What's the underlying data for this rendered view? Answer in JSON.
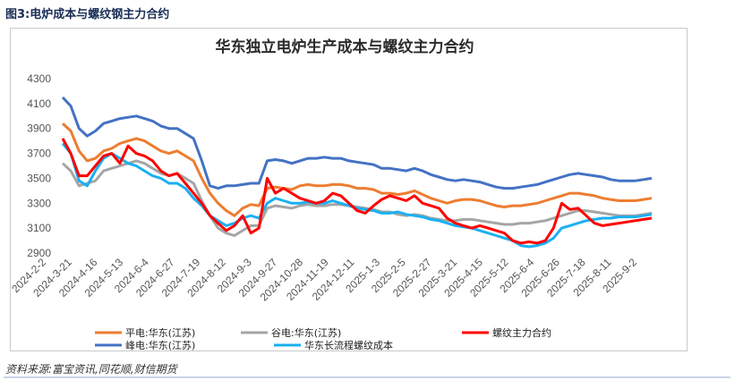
{
  "figure_title": "图3:电炉成本与螺纹钢主力合约",
  "source": "资料来源:富宝资讯,同花顺,财信期货",
  "chart_data": {
    "type": "line",
    "title": "华东独立电炉生产成本与螺纹主力合约",
    "xlabel": "",
    "ylabel": "",
    "ylim": [
      2900,
      4300
    ],
    "yticks": [
      2900,
      3100,
      3300,
      3500,
      3700,
      3900,
      4100,
      4300
    ],
    "x_tick_labels": [
      "2024-2-2",
      "2024-3-21",
      "2024-4-16",
      "2024-5-13",
      "2024-6-4",
      "2024-6-27",
      "2024-7-19",
      "2024-8-12",
      "2024-9-3",
      "2024-9-27",
      "2024-10-28",
      "2024-11-19",
      "2024-12-11",
      "2025-1-3",
      "2025-2-5",
      "2025-2-27",
      "2025-3-21",
      "2025-4-15",
      "2025-5-12",
      "2025-6-4",
      "2025-6-26",
      "2025-7-18",
      "2025-8-11",
      "2025-9-2"
    ],
    "x_index": [
      0,
      1,
      2,
      3,
      4,
      5,
      6,
      7,
      8,
      9,
      10,
      11,
      12,
      13,
      14,
      15,
      16,
      17,
      18,
      19,
      20,
      21,
      22,
      23,
      24,
      25,
      26,
      27,
      28,
      29,
      30,
      31,
      32,
      33,
      34,
      35,
      36,
      37,
      38,
      39,
      40,
      41,
      42,
      43,
      44,
      45,
      46,
      47,
      48,
      49,
      50,
      51,
      52,
      53,
      54,
      55,
      56,
      57,
      58,
      59,
      60,
      61,
      62,
      63,
      64,
      65,
      66,
      67,
      68,
      69,
      70,
      71,
      72
    ],
    "series": [
      {
        "name": "平电:华东(江苏)",
        "color": "#ED7D31",
        "legend_pos": "row1-left",
        "values": [
          3940,
          3880,
          3720,
          3640,
          3660,
          3720,
          3740,
          3780,
          3800,
          3820,
          3800,
          3760,
          3720,
          3700,
          3720,
          3680,
          3640,
          3500,
          3380,
          3300,
          3240,
          3200,
          3260,
          3290,
          3280,
          3420,
          3430,
          3420,
          3410,
          3440,
          3450,
          3440,
          3440,
          3450,
          3450,
          3440,
          3420,
          3420,
          3410,
          3380,
          3380,
          3370,
          3380,
          3400,
          3370,
          3340,
          3320,
          3300,
          3320,
          3330,
          3330,
          3320,
          3300,
          3280,
          3270,
          3280,
          3280,
          3290,
          3300,
          3320,
          3340,
          3360,
          3380,
          3380,
          3370,
          3360,
          3340,
          3330,
          3320,
          3320,
          3320,
          3330,
          3340
        ]
      },
      {
        "name": "谷电:华东(江苏)",
        "color": "#A5A5A5",
        "legend_pos": "row1-mid",
        "values": [
          3620,
          3560,
          3440,
          3460,
          3480,
          3560,
          3580,
          3600,
          3620,
          3640,
          3620,
          3580,
          3540,
          3520,
          3540,
          3500,
          3460,
          3320,
          3200,
          3100,
          3060,
          3040,
          3080,
          3120,
          3120,
          3260,
          3280,
          3270,
          3260,
          3280,
          3290,
          3280,
          3280,
          3290,
          3290,
          3280,
          3270,
          3260,
          3250,
          3230,
          3230,
          3210,
          3200,
          3210,
          3200,
          3180,
          3170,
          3160,
          3160,
          3170,
          3170,
          3160,
          3150,
          3140,
          3130,
          3130,
          3140,
          3140,
          3150,
          3160,
          3180,
          3200,
          3220,
          3240,
          3240,
          3230,
          3220,
          3210,
          3200,
          3200,
          3200,
          3210,
          3220
        ]
      },
      {
        "name": "螺纹主力合约",
        "color": "#FF0000",
        "legend_pos": "row1-right",
        "values": [
          3820,
          3700,
          3520,
          3520,
          3600,
          3680,
          3700,
          3620,
          3760,
          3700,
          3680,
          3640,
          3560,
          3520,
          3540,
          3460,
          3380,
          3300,
          3200,
          3140,
          3080,
          3120,
          3200,
          3060,
          3100,
          3500,
          3380,
          3420,
          3380,
          3340,
          3320,
          3300,
          3320,
          3380,
          3360,
          3300,
          3240,
          3220,
          3280,
          3330,
          3360,
          3340,
          3320,
          3360,
          3300,
          3280,
          3260,
          3180,
          3140,
          3120,
          3100,
          3120,
          3100,
          3080,
          3060,
          3000,
          2980,
          2990,
          2980,
          3000,
          3100,
          3300,
          3250,
          3260,
          3200,
          3140,
          3120,
          3130,
          3140,
          3150,
          3160,
          3170,
          3180
        ]
      },
      {
        "name": "峰电:华东(江苏)",
        "color": "#4472C4",
        "legend_pos": "row2-left",
        "values": [
          4150,
          4080,
          3900,
          3840,
          3880,
          3940,
          3960,
          3980,
          3990,
          4000,
          3980,
          3960,
          3920,
          3900,
          3900,
          3860,
          3820,
          3640,
          3440,
          3420,
          3440,
          3440,
          3450,
          3460,
          3460,
          3640,
          3650,
          3640,
          3620,
          3640,
          3660,
          3660,
          3670,
          3660,
          3660,
          3640,
          3630,
          3620,
          3610,
          3580,
          3580,
          3570,
          3560,
          3580,
          3560,
          3530,
          3510,
          3490,
          3480,
          3490,
          3480,
          3470,
          3450,
          3430,
          3420,
          3420,
          3430,
          3440,
          3450,
          3470,
          3490,
          3510,
          3530,
          3540,
          3530,
          3520,
          3510,
          3490,
          3480,
          3480,
          3480,
          3490,
          3500
        ]
      },
      {
        "name": "华东长流程螺纹成本",
        "color": "#1AB0F2",
        "legend_pos": "row2-mid",
        "values": [
          3780,
          3700,
          3480,
          3440,
          3560,
          3660,
          3700,
          3660,
          3620,
          3600,
          3560,
          3520,
          3500,
          3460,
          3460,
          3420,
          3340,
          3280,
          3200,
          3160,
          3120,
          3140,
          3180,
          3200,
          3180,
          3300,
          3340,
          3320,
          3300,
          3300,
          3310,
          3300,
          3300,
          3320,
          3300,
          3280,
          3260,
          3250,
          3240,
          3220,
          3220,
          3230,
          3210,
          3200,
          3190,
          3170,
          3160,
          3140,
          3120,
          3110,
          3100,
          3080,
          3060,
          3040,
          3020,
          3000,
          2960,
          2950,
          2960,
          2980,
          3020,
          3100,
          3120,
          3140,
          3160,
          3170,
          3180,
          3180,
          3190,
          3190,
          3190,
          3200,
          3210
        ]
      }
    ]
  }
}
